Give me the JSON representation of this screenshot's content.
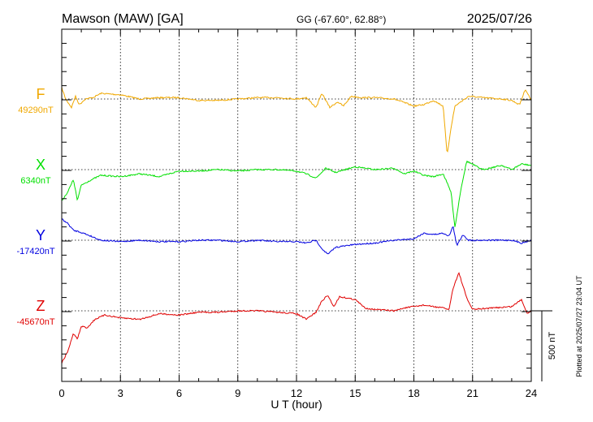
{
  "header": {
    "station": "Mawson (MAW)  [GA]",
    "coords": "GG (-67.60°,  62.88°)",
    "date": "2025/07/26"
  },
  "plotted_note": "Plotted at 2025/07/27 23:04 UT",
  "scale_label": "500 nT",
  "chart_data": {
    "type": "line",
    "xlabel": "U T (hour)",
    "xlim": [
      0,
      24
    ],
    "xticks": [
      "0",
      "3",
      "6",
      "9",
      "12",
      "15",
      "18",
      "21",
      "24"
    ],
    "grid": "dotted vertical lines every 3 h; dotted baseline per component",
    "series": [
      {
        "name": "F",
        "baseline_label": "49290nT",
        "color": "#f0a800",
        "x": [
          0,
          0.2,
          0.5,
          0.7,
          0.9,
          1.2,
          1.6,
          2.0,
          3,
          4,
          5,
          6,
          7,
          8,
          9,
          10,
          11,
          12,
          12.5,
          13,
          13.3,
          13.7,
          14.1,
          14.4,
          14.8,
          15.3,
          16,
          17,
          18,
          18.5,
          19,
          19.5,
          19.7,
          19.9,
          20.1,
          20.4,
          20.8,
          21.5,
          22.5,
          23,
          23.4,
          23.7,
          24
        ],
        "values": [
          49370,
          49290,
          49230,
          49310,
          49250,
          49290,
          49300,
          49330,
          49320,
          49290,
          49300,
          49300,
          49280,
          49280,
          49290,
          49300,
          49300,
          49290,
          49300,
          49230,
          49330,
          49230,
          49270,
          49240,
          49310,
          49300,
          49300,
          49290,
          49240,
          49250,
          49280,
          49240,
          48890,
          49090,
          49240,
          49270,
          49310,
          49300,
          49290,
          49280,
          49250,
          49360,
          49280
        ]
      },
      {
        "name": "X",
        "baseline_label": "6340nT",
        "color": "#00e000",
        "x": [
          0,
          0.3,
          0.6,
          0.8,
          1.0,
          1.4,
          2,
          3,
          4,
          5,
          6,
          7,
          8,
          9,
          10,
          11,
          12,
          12.5,
          13,
          13.5,
          14,
          15,
          16,
          17,
          17.5,
          18,
          18.5,
          19,
          19.5,
          19.9,
          20.1,
          20.4,
          20.7,
          21.5,
          22.5,
          23,
          23.5,
          24
        ],
        "values": [
          6120,
          6180,
          6270,
          6120,
          6230,
          6260,
          6300,
          6290,
          6310,
          6290,
          6330,
          6330,
          6340,
          6330,
          6340,
          6340,
          6330,
          6310,
          6280,
          6350,
          6320,
          6360,
          6340,
          6350,
          6310,
          6330,
          6300,
          6290,
          6310,
          6180,
          5930,
          6200,
          6400,
          6340,
          6370,
          6340,
          6380,
          6370
        ]
      },
      {
        "name": "Y",
        "baseline_label": "-17420nT",
        "color": "#0000e0",
        "x": [
          0,
          0.3,
          0.6,
          0.9,
          1.3,
          2,
          3,
          4,
          5,
          6,
          7,
          8,
          9,
          10,
          11,
          12,
          12.5,
          13,
          13.3,
          13.6,
          14,
          14.5,
          15,
          16,
          17,
          18,
          18.5,
          19,
          19.5,
          19.8,
          20,
          20.2,
          20.5,
          20.8,
          21.2,
          22,
          23,
          23.5,
          24
        ],
        "values": [
          -17270,
          -17300,
          -17350,
          -17360,
          -17380,
          -17420,
          -17430,
          -17420,
          -17430,
          -17430,
          -17420,
          -17420,
          -17430,
          -17420,
          -17430,
          -17430,
          -17440,
          -17420,
          -17480,
          -17520,
          -17470,
          -17460,
          -17450,
          -17440,
          -17420,
          -17410,
          -17370,
          -17380,
          -17370,
          -17390,
          -17320,
          -17460,
          -17380,
          -17420,
          -17420,
          -17420,
          -17420,
          -17440,
          -17420
        ]
      },
      {
        "name": "Z",
        "baseline_label": "-45670nT",
        "color": "#e00000",
        "x": [
          0,
          0.3,
          0.6,
          0.8,
          1.0,
          1.3,
          1.7,
          2.2,
          3,
          4,
          5,
          6,
          7,
          8,
          9,
          10,
          11,
          12,
          12.5,
          13,
          13.3,
          13.6,
          13.9,
          14.2,
          14.6,
          15,
          15.5,
          16,
          17,
          17.5,
          18,
          18.5,
          19,
          19.5,
          19.8,
          20,
          20.3,
          20.7,
          21,
          22,
          23,
          23.5,
          23.8,
          24
        ],
        "values": [
          -46040,
          -45960,
          -45830,
          -45870,
          -45780,
          -45790,
          -45730,
          -45700,
          -45720,
          -45730,
          -45690,
          -45700,
          -45680,
          -45680,
          -45670,
          -45670,
          -45680,
          -45690,
          -45730,
          -45680,
          -45600,
          -45560,
          -45640,
          -45570,
          -45580,
          -45590,
          -45650,
          -45660,
          -45670,
          -45650,
          -45640,
          -45630,
          -45640,
          -45650,
          -45660,
          -45510,
          -45400,
          -45580,
          -45660,
          -45650,
          -45640,
          -45590,
          -45690,
          -45670
        ]
      }
    ],
    "scale_bar_nT": 500
  }
}
